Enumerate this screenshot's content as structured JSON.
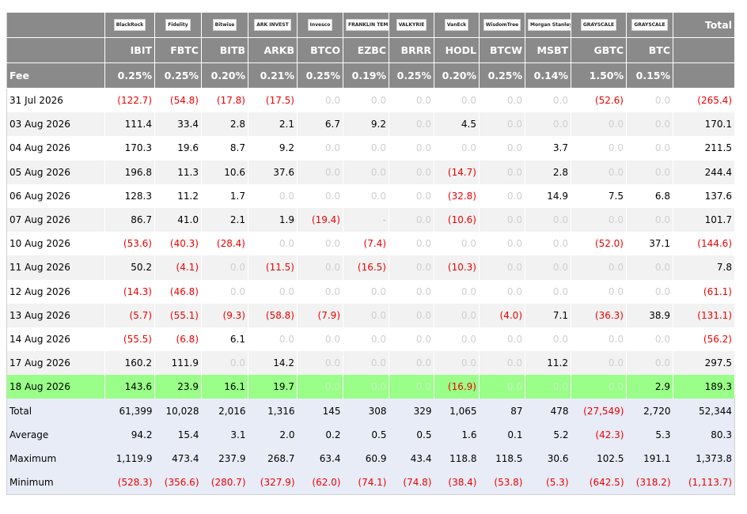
{
  "table": {
    "total_label": "Total",
    "fee_label": "Fee",
    "columns": [
      {
        "logo": "BlackRock",
        "ticker": "IBIT",
        "fee": "0.25%"
      },
      {
        "logo": "Fidelity",
        "ticker": "FBTC",
        "fee": "0.25%"
      },
      {
        "logo": "Bitwise",
        "ticker": "BITB",
        "fee": "0.20%"
      },
      {
        "logo": "ARK INVEST",
        "ticker": "ARKB",
        "fee": "0.21%"
      },
      {
        "logo": "Invesco",
        "ticker": "BTCO",
        "fee": "0.25%"
      },
      {
        "logo": "FRANKLIN TEMPLETON",
        "ticker": "EZBC",
        "fee": "0.19%"
      },
      {
        "logo": "VALKYRIE",
        "ticker": "BRRR",
        "fee": "0.25%"
      },
      {
        "logo": "VanEck",
        "ticker": "HODL",
        "fee": "0.20%"
      },
      {
        "logo": "WisdomTree",
        "ticker": "BTCW",
        "fee": "0.25%"
      },
      {
        "logo": "Morgan Stanley",
        "ticker": "MSBT",
        "fee": "0.14%"
      },
      {
        "logo": "GRAYSCALE",
        "ticker": "GBTC",
        "fee": "1.50%"
      },
      {
        "logo": "GRAYSCALE",
        "ticker": "BTC",
        "fee": "0.15%"
      }
    ],
    "rows": [
      {
        "date": "31 Jul 2026",
        "values": [
          "(122.7)",
          "(54.8)",
          "(17.8)",
          "(17.5)",
          "0.0",
          "0.0",
          "0.0",
          "0.0",
          "0.0",
          "0.0",
          "(52.6)",
          "0.0"
        ],
        "total": "(265.4)"
      },
      {
        "date": "03 Aug 2026",
        "values": [
          "111.4",
          "33.4",
          "2.8",
          "2.1",
          "6.7",
          "9.2",
          "0.0",
          "4.5",
          "0.0",
          "0.0",
          "0.0",
          "0.0"
        ],
        "total": "170.1"
      },
      {
        "date": "04 Aug 2026",
        "values": [
          "170.3",
          "19.6",
          "8.7",
          "9.2",
          "0.0",
          "0.0",
          "0.0",
          "0.0",
          "0.0",
          "3.7",
          "0.0",
          "0.0"
        ],
        "total": "211.5"
      },
      {
        "date": "05 Aug 2026",
        "values": [
          "196.8",
          "11.3",
          "10.6",
          "37.6",
          "0.0",
          "0.0",
          "0.0",
          "(14.7)",
          "0.0",
          "2.8",
          "0.0",
          "0.0"
        ],
        "total": "244.4"
      },
      {
        "date": "06 Aug 2026",
        "values": [
          "128.3",
          "11.2",
          "1.7",
          "0.0",
          "0.0",
          "0.0",
          "0.0",
          "(32.8)",
          "0.0",
          "14.9",
          "7.5",
          "6.8"
        ],
        "total": "137.6"
      },
      {
        "date": "07 Aug 2026",
        "values": [
          "86.7",
          "41.0",
          "2.1",
          "1.9",
          "(19.4)",
          "-",
          "0.0",
          "(10.6)",
          "0.0",
          "0.0",
          "0.0",
          "0.0"
        ],
        "total": "101.7"
      },
      {
        "date": "10 Aug 2026",
        "values": [
          "(53.6)",
          "(40.3)",
          "(28.4)",
          "0.0",
          "0.0",
          "(7.4)",
          "0.0",
          "0.0",
          "0.0",
          "0.0",
          "(52.0)",
          "37.1"
        ],
        "total": "(144.6)"
      },
      {
        "date": "11 Aug 2026",
        "values": [
          "50.2",
          "(4.1)",
          "0.0",
          "(11.5)",
          "0.0",
          "(16.5)",
          "0.0",
          "(10.3)",
          "0.0",
          "0.0",
          "0.0",
          "0.0"
        ],
        "total": "7.8"
      },
      {
        "date": "12 Aug 2026",
        "values": [
          "(14.3)",
          "(46.8)",
          "0.0",
          "0.0",
          "0.0",
          "0.0",
          "0.0",
          "0.0",
          "0.0",
          "0.0",
          "0.0",
          "0.0"
        ],
        "total": "(61.1)"
      },
      {
        "date": "13 Aug 2026",
        "values": [
          "(5.7)",
          "(55.1)",
          "(9.3)",
          "(58.8)",
          "(7.9)",
          "0.0",
          "0.0",
          "0.0",
          "(4.0)",
          "7.1",
          "(36.3)",
          "38.9"
        ],
        "total": "(131.1)"
      },
      {
        "date": "14 Aug 2026",
        "values": [
          "(55.5)",
          "(6.8)",
          "6.1",
          "0.0",
          "0.0",
          "0.0",
          "0.0",
          "0.0",
          "0.0",
          "0.0",
          "0.0",
          "0.0"
        ],
        "total": "(56.2)"
      },
      {
        "date": "17 Aug 2026",
        "values": [
          "160.2",
          "111.9",
          "0.0",
          "14.2",
          "0.0",
          "0.0",
          "0.0",
          "0.0",
          "0.0",
          "11.2",
          "0.0",
          "0.0"
        ],
        "total": "297.5"
      },
      {
        "date": "18 Aug 2026",
        "values": [
          "143.6",
          "23.9",
          "16.1",
          "19.7",
          "0.0",
          "0.0",
          "0.0",
          "(16.9)",
          "0.0",
          "0.0",
          "0.0",
          "2.9"
        ],
        "total": "189.3",
        "highlight": true
      }
    ],
    "summary": [
      {
        "label": "Total",
        "values": [
          "61,399",
          "10,028",
          "2,016",
          "1,316",
          "145",
          "308",
          "329",
          "1,065",
          "87",
          "478",
          "(27,549)",
          "2,720"
        ],
        "total": "52,344"
      },
      {
        "label": "Average",
        "values": [
          "94.2",
          "15.4",
          "3.1",
          "2.0",
          "0.2",
          "0.5",
          "0.5",
          "1.6",
          "0.1",
          "5.2",
          "(42.3)",
          "5.3"
        ],
        "total": "80.3"
      },
      {
        "label": "Maximum",
        "values": [
          "1,119.9",
          "473.4",
          "237.9",
          "268.7",
          "63.4",
          "60.9",
          "43.4",
          "118.8",
          "118.5",
          "30.6",
          "102.5",
          "191.1"
        ],
        "total": "1,373.8"
      },
      {
        "label": "Minimum",
        "values": [
          "(528.3)",
          "(356.6)",
          "(280.7)",
          "(327.9)",
          "(62.0)",
          "(74.1)",
          "(74.8)",
          "(38.4)",
          "(53.8)",
          "(5.3)",
          "(642.5)",
          "(318.2)"
        ],
        "total": "(1,113.7)"
      }
    ]
  },
  "colors": {
    "header_bg": "#8a8a8a",
    "negative": "#ee0000",
    "zero": "#cfcfcf",
    "highlight_row": "#99ff88",
    "summary_bg": "#e7ecf7",
    "stripe": "#f2f2f2"
  }
}
